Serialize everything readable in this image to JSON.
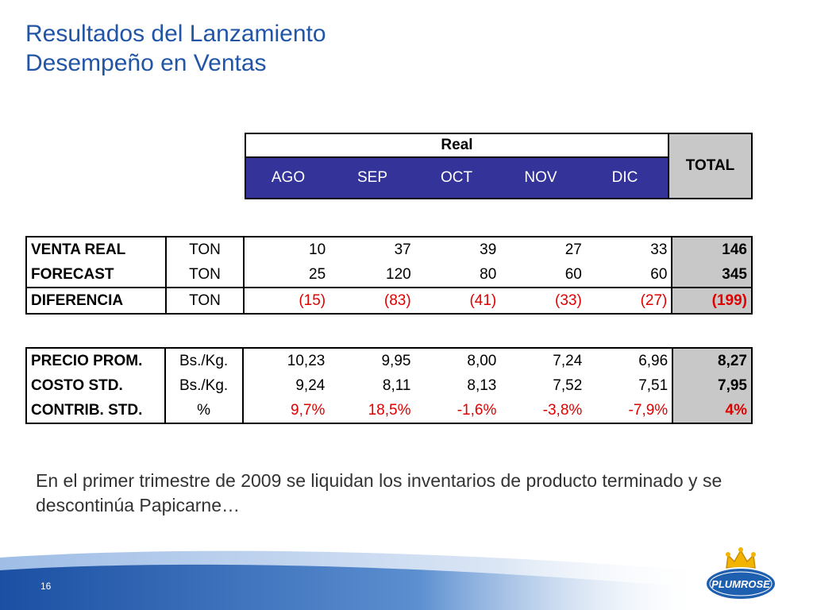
{
  "title": {
    "line1": "Resultados del Lanzamiento",
    "line2": "Desempeño en Ventas"
  },
  "header": {
    "real": "Real",
    "total": "TOTAL",
    "months": [
      "AGO",
      "SEP",
      "OCT",
      "NOV",
      "DIC"
    ]
  },
  "table1": [
    {
      "label": "VENTA REAL",
      "unit": "TON",
      "values": [
        "10",
        "37",
        "39",
        "27",
        "33"
      ],
      "total": "146",
      "red": false
    },
    {
      "label": "FORECAST",
      "unit": "TON",
      "values": [
        "25",
        "120",
        "80",
        "60",
        "60"
      ],
      "total": "345",
      "red": false
    },
    {
      "label": "DIFERENCIA",
      "unit": "TON",
      "values": [
        "(15)",
        "(83)",
        "(41)",
        "(33)",
        "(27)"
      ],
      "total": "(199)",
      "red": true
    }
  ],
  "table2": [
    {
      "label": "PRECIO PROM.",
      "unit": "Bs./Kg.",
      "values": [
        "10,23",
        "9,95",
        "8,00",
        "7,24",
        "6,96"
      ],
      "total": "8,27",
      "red": false
    },
    {
      "label": "COSTO STD.",
      "unit": "Bs./Kg.",
      "values": [
        "9,24",
        "8,11",
        "8,13",
        "7,52",
        "7,51"
      ],
      "total": "7,95",
      "red": false
    },
    {
      "label": "CONTRIB. STD.",
      "unit": "%",
      "values": [
        "9,7%",
        "18,5%",
        "-1,6%",
        "-3,8%",
        "-7,9%"
      ],
      "total": "4%",
      "red": true
    }
  ],
  "note": "En el primer trimestre de 2009 se liquidan los inventarios de producto terminado y se descontinúa Papicarne…",
  "page_number": "16",
  "logo_text": "PLUMROSE",
  "colors": {
    "title": "#2155a6",
    "header_band": "#33339a",
    "total_bg": "#c8c8c8",
    "negative": "#e00000",
    "footer": "#1f5fb0"
  }
}
